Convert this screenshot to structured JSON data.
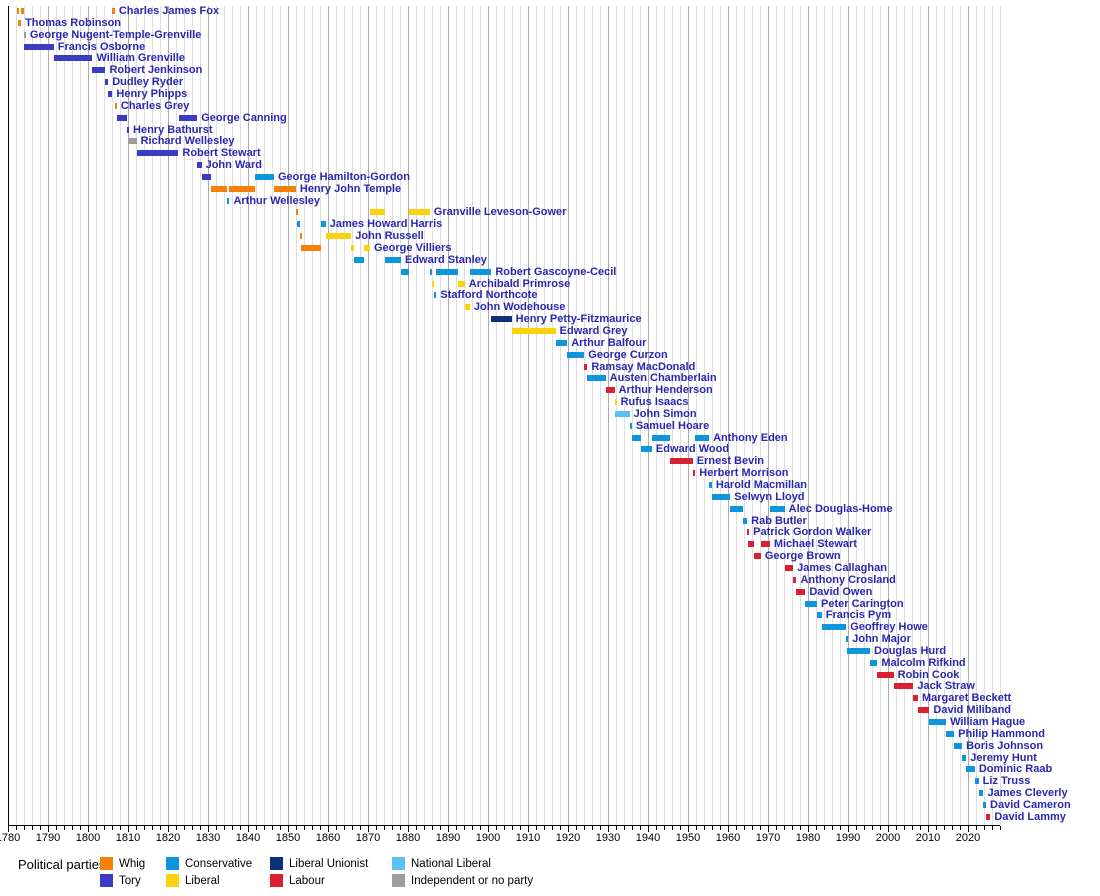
{
  "legend": {
    "title": "Political parties:",
    "entries": [
      "Whig",
      "Tory",
      "Conservative",
      "Liberal",
      "Liberal Unionist",
      "Labour",
      "National Liberal",
      "Independent or no party"
    ]
  },
  "chart_data": {
    "type": "bar",
    "subtype": "timeline-gantt",
    "title": "",
    "axis": {
      "min": 1780,
      "max": 2028,
      "minor_step": 2,
      "label_step": 10,
      "tick_labels": [
        "1780",
        "1790",
        "1800",
        "1810",
        "1820",
        "1830",
        "1840",
        "1850",
        "1860",
        "1870",
        "1880",
        "1890",
        "1900",
        "1910",
        "1920",
        "1930",
        "1940",
        "1950",
        "1960",
        "1970",
        "1980",
        "1990",
        "2000",
        "2010",
        "2020"
      ]
    },
    "parties": {
      "Whig": "#F5810B",
      "Tory": "#3B3BC6",
      "Conservative": "#0E96DC",
      "Liberal": "#FBD20B",
      "Liberal Unionist": "#0D3076",
      "Labour": "#DA2132",
      "National Liberal": "#5CC1F0",
      "Independent or no party": "#9D9D9D"
    },
    "people": [
      {
        "name": "Charles James Fox",
        "terms": [
          [
            1782.24,
            1782.55,
            "Whig"
          ],
          [
            1783.27,
            1783.96,
            "Whig"
          ],
          [
            1806.1,
            1806.71,
            "Whig"
          ]
        ]
      },
      {
        "name": "Thomas Robinson",
        "terms": [
          [
            1782.55,
            1783.27,
            "Whig"
          ]
        ]
      },
      {
        "name": "George Nugent-Temple-Grenville",
        "terms": [
          [
            1783.96,
            1784.02,
            "Independent or no party"
          ]
        ]
      },
      {
        "name": "Francis Osborne",
        "terms": [
          [
            1783.98,
            1791.45,
            "Tory"
          ]
        ]
      },
      {
        "name": "William Grenville",
        "terms": [
          [
            1791.45,
            1801.12,
            "Tory"
          ]
        ]
      },
      {
        "name": "Robert Jenkinson",
        "terms": [
          [
            1801.12,
            1804.36,
            "Tory"
          ]
        ]
      },
      {
        "name": "Dudley Ryder",
        "terms": [
          [
            1804.36,
            1805.05,
            "Tory"
          ]
        ]
      },
      {
        "name": "Henry Phipps",
        "terms": [
          [
            1805.05,
            1806.1,
            "Tory"
          ]
        ]
      },
      {
        "name": "Charles Grey",
        "terms": [
          [
            1806.71,
            1807.22,
            "Whig"
          ]
        ]
      },
      {
        "name": "George Canning",
        "terms": [
          [
            1807.22,
            1809.76,
            "Tory"
          ],
          [
            1822.68,
            1827.3,
            "Tory"
          ]
        ]
      },
      {
        "name": "Henry Bathurst",
        "terms": [
          [
            1809.76,
            1809.92,
            "Tory"
          ]
        ]
      },
      {
        "name": "Richard Wellesley",
        "terms": [
          [
            1809.92,
            1812.15,
            "Independent or no party"
          ]
        ]
      },
      {
        "name": "Robert Stewart",
        "terms": [
          [
            1812.15,
            1822.6,
            "Tory"
          ]
        ]
      },
      {
        "name": "John Ward",
        "terms": [
          [
            1827.3,
            1828.4,
            "Tory"
          ]
        ]
      },
      {
        "name": "George Hamilton-Gordon",
        "terms": [
          [
            1828.4,
            1830.87,
            "Tory"
          ],
          [
            1841.67,
            1846.5,
            "Conservative"
          ]
        ]
      },
      {
        "name": "Henry John Temple",
        "terms": [
          [
            1830.87,
            1834.86,
            "Whig"
          ],
          [
            1835.3,
            1841.67,
            "Whig"
          ],
          [
            1846.5,
            1851.97,
            "Whig"
          ]
        ]
      },
      {
        "name": "Arthur Wellesley",
        "terms": [
          [
            1834.86,
            1835.3,
            "Conservative"
          ]
        ]
      },
      {
        "name": "Granville Leveson-Gower",
        "terms": [
          [
            1851.97,
            1852.15,
            "Whig"
          ],
          [
            1870.5,
            1874.15,
            "Liberal"
          ],
          [
            1880.32,
            1885.45,
            "Liberal"
          ]
        ]
      },
      {
        "name": "James Howard Harris",
        "terms": [
          [
            1852.15,
            1852.97,
            "Conservative"
          ],
          [
            1858.15,
            1859.45,
            "Conservative"
          ]
        ]
      },
      {
        "name": "John Russell",
        "terms": [
          [
            1852.97,
            1853.15,
            "Whig"
          ],
          [
            1859.45,
            1865.82,
            "Liberal"
          ]
        ]
      },
      {
        "name": "George Villiers",
        "terms": [
          [
            1853.15,
            1858.15,
            "Whig"
          ],
          [
            1865.82,
            1866.5,
            "Liberal"
          ],
          [
            1868.93,
            1870.5,
            "Liberal"
          ]
        ]
      },
      {
        "name": "Edward Stanley",
        "terms": [
          [
            1866.5,
            1868.93,
            "Conservative"
          ],
          [
            1874.15,
            1878.25,
            "Conservative"
          ]
        ]
      },
      {
        "name": "Robert Gascoyne-Cecil",
        "terms": [
          [
            1878.25,
            1880.32,
            "Conservative"
          ],
          [
            1885.45,
            1886.1,
            "Conservative"
          ],
          [
            1887.03,
            1892.6,
            "Conservative"
          ],
          [
            1895.48,
            1900.83,
            "Conservative"
          ]
        ]
      },
      {
        "name": "Archibald Primrose",
        "terms": [
          [
            1886.1,
            1886.6,
            "Liberal"
          ],
          [
            1892.6,
            1894.19,
            "Liberal"
          ]
        ]
      },
      {
        "name": "Stafford Northcote",
        "terms": [
          [
            1886.6,
            1887.03,
            "Conservative"
          ]
        ]
      },
      {
        "name": "John Wodehouse",
        "terms": [
          [
            1894.19,
            1895.48,
            "Liberal"
          ]
        ]
      },
      {
        "name": "Henry Petty-Fitzmaurice",
        "terms": [
          [
            1900.83,
            1905.92,
            "Liberal Unionist"
          ]
        ]
      },
      {
        "name": "Edward Grey",
        "terms": [
          [
            1905.92,
            1916.92,
            "Liberal"
          ]
        ]
      },
      {
        "name": "Arthur Balfour",
        "terms": [
          [
            1916.92,
            1919.8,
            "Conservative"
          ]
        ]
      },
      {
        "name": "George Curzon",
        "terms": [
          [
            1919.8,
            1924.07,
            "Conservative"
          ]
        ]
      },
      {
        "name": "Ramsay MacDonald",
        "terms": [
          [
            1924.07,
            1924.84,
            "Labour"
          ]
        ]
      },
      {
        "name": "Austen Chamberlain",
        "terms": [
          [
            1924.84,
            1929.42,
            "Conservative"
          ]
        ]
      },
      {
        "name": "Arthur Henderson",
        "terms": [
          [
            1929.42,
            1931.65,
            "Labour"
          ]
        ]
      },
      {
        "name": "Rufus Isaacs",
        "terms": [
          [
            1931.65,
            1931.84,
            "Liberal"
          ]
        ]
      },
      {
        "name": "John Simon",
        "terms": [
          [
            1931.84,
            1935.42,
            "National Liberal"
          ]
        ]
      },
      {
        "name": "Samuel Hoare",
        "terms": [
          [
            1935.42,
            1935.96,
            "Conservative"
          ]
        ]
      },
      {
        "name": "Anthony Eden",
        "terms": [
          [
            1935.96,
            1938.13,
            "Conservative"
          ],
          [
            1940.98,
            1945.57,
            "Conservative"
          ],
          [
            1951.82,
            1955.27,
            "Conservative"
          ]
        ]
      },
      {
        "name": "Edward Wood",
        "terms": [
          [
            1938.13,
            1940.98,
            "Conservative"
          ]
        ]
      },
      {
        "name": "Ernest Bevin",
        "terms": [
          [
            1945.57,
            1951.19,
            "Labour"
          ]
        ]
      },
      {
        "name": "Herbert Morrison",
        "terms": [
          [
            1951.19,
            1951.82,
            "Labour"
          ]
        ]
      },
      {
        "name": "Harold Macmillan",
        "terms": [
          [
            1955.27,
            1955.97,
            "Conservative"
          ]
        ]
      },
      {
        "name": "Selwyn Lloyd",
        "terms": [
          [
            1955.97,
            1960.56,
            "Conservative"
          ]
        ]
      },
      {
        "name": "Alec Douglas-Home",
        "terms": [
          [
            1960.56,
            1963.8,
            "Conservative"
          ],
          [
            1970.46,
            1974.17,
            "Conservative"
          ]
        ]
      },
      {
        "name": "Rab Butler",
        "terms": [
          [
            1963.8,
            1964.79,
            "Conservative"
          ]
        ]
      },
      {
        "name": "Patrick Gordon Walker",
        "terms": [
          [
            1964.79,
            1965.06,
            "Labour"
          ]
        ]
      },
      {
        "name": "Michael Stewart",
        "terms": [
          [
            1965.06,
            1966.6,
            "Labour"
          ],
          [
            1968.21,
            1970.46,
            "Labour"
          ]
        ]
      },
      {
        "name": "George Brown",
        "terms": [
          [
            1966.6,
            1968.21,
            "Labour"
          ]
        ]
      },
      {
        "name": "James Callaghan",
        "terms": [
          [
            1974.17,
            1976.27,
            "Labour"
          ]
        ]
      },
      {
        "name": "Anthony Crosland",
        "terms": [
          [
            1976.27,
            1977.12,
            "Labour"
          ]
        ]
      },
      {
        "name": "David Owen",
        "terms": [
          [
            1977.12,
            1979.34,
            "Labour"
          ]
        ]
      },
      {
        "name": "Peter Carington",
        "terms": [
          [
            1979.34,
            1982.26,
            "Conservative"
          ]
        ]
      },
      {
        "name": "Francis Pym",
        "terms": [
          [
            1982.26,
            1983.44,
            "Conservative"
          ]
        ]
      },
      {
        "name": "Geoffrey Howe",
        "terms": [
          [
            1983.44,
            1989.56,
            "Conservative"
          ]
        ]
      },
      {
        "name": "John Major",
        "terms": [
          [
            1989.56,
            1989.82,
            "Conservative"
          ]
        ]
      },
      {
        "name": "Douglas Hurd",
        "terms": [
          [
            1989.82,
            1995.51,
            "Conservative"
          ]
        ]
      },
      {
        "name": "Malcolm Rifkind",
        "terms": [
          [
            1995.51,
            1997.33,
            "Conservative"
          ]
        ]
      },
      {
        "name": "Robin Cook",
        "terms": [
          [
            1997.33,
            2001.42,
            "Labour"
          ]
        ]
      },
      {
        "name": "Jack Straw",
        "terms": [
          [
            2001.42,
            2006.35,
            "Labour"
          ]
        ]
      },
      {
        "name": "Margaret Beckett",
        "terms": [
          [
            2006.35,
            2007.49,
            "Labour"
          ]
        ]
      },
      {
        "name": "David Miliband",
        "terms": [
          [
            2007.49,
            2010.35,
            "Labour"
          ]
        ]
      },
      {
        "name": "William Hague",
        "terms": [
          [
            2010.35,
            2014.52,
            "Conservative"
          ]
        ]
      },
      {
        "name": "Philip Hammond",
        "terms": [
          [
            2014.52,
            2016.54,
            "Conservative"
          ]
        ]
      },
      {
        "name": "Boris Johnson",
        "terms": [
          [
            2016.54,
            2018.52,
            "Conservative"
          ]
        ]
      },
      {
        "name": "Jeremy Hunt",
        "terms": [
          [
            2018.52,
            2019.56,
            "Conservative"
          ]
        ]
      },
      {
        "name": "Dominic Raab",
        "terms": [
          [
            2019.56,
            2021.71,
            "Conservative"
          ]
        ]
      },
      {
        "name": "Liz Truss",
        "terms": [
          [
            2021.71,
            2022.67,
            "Conservative"
          ]
        ]
      },
      {
        "name": "James Cleverly",
        "terms": [
          [
            2022.67,
            2023.87,
            "Conservative"
          ]
        ]
      },
      {
        "name": "David Cameron",
        "terms": [
          [
            2023.87,
            2024.51,
            "Conservative"
          ]
        ]
      },
      {
        "name": "David Lammy",
        "terms": [
          [
            2024.51,
            2025.6,
            "Labour"
          ]
        ]
      }
    ]
  }
}
